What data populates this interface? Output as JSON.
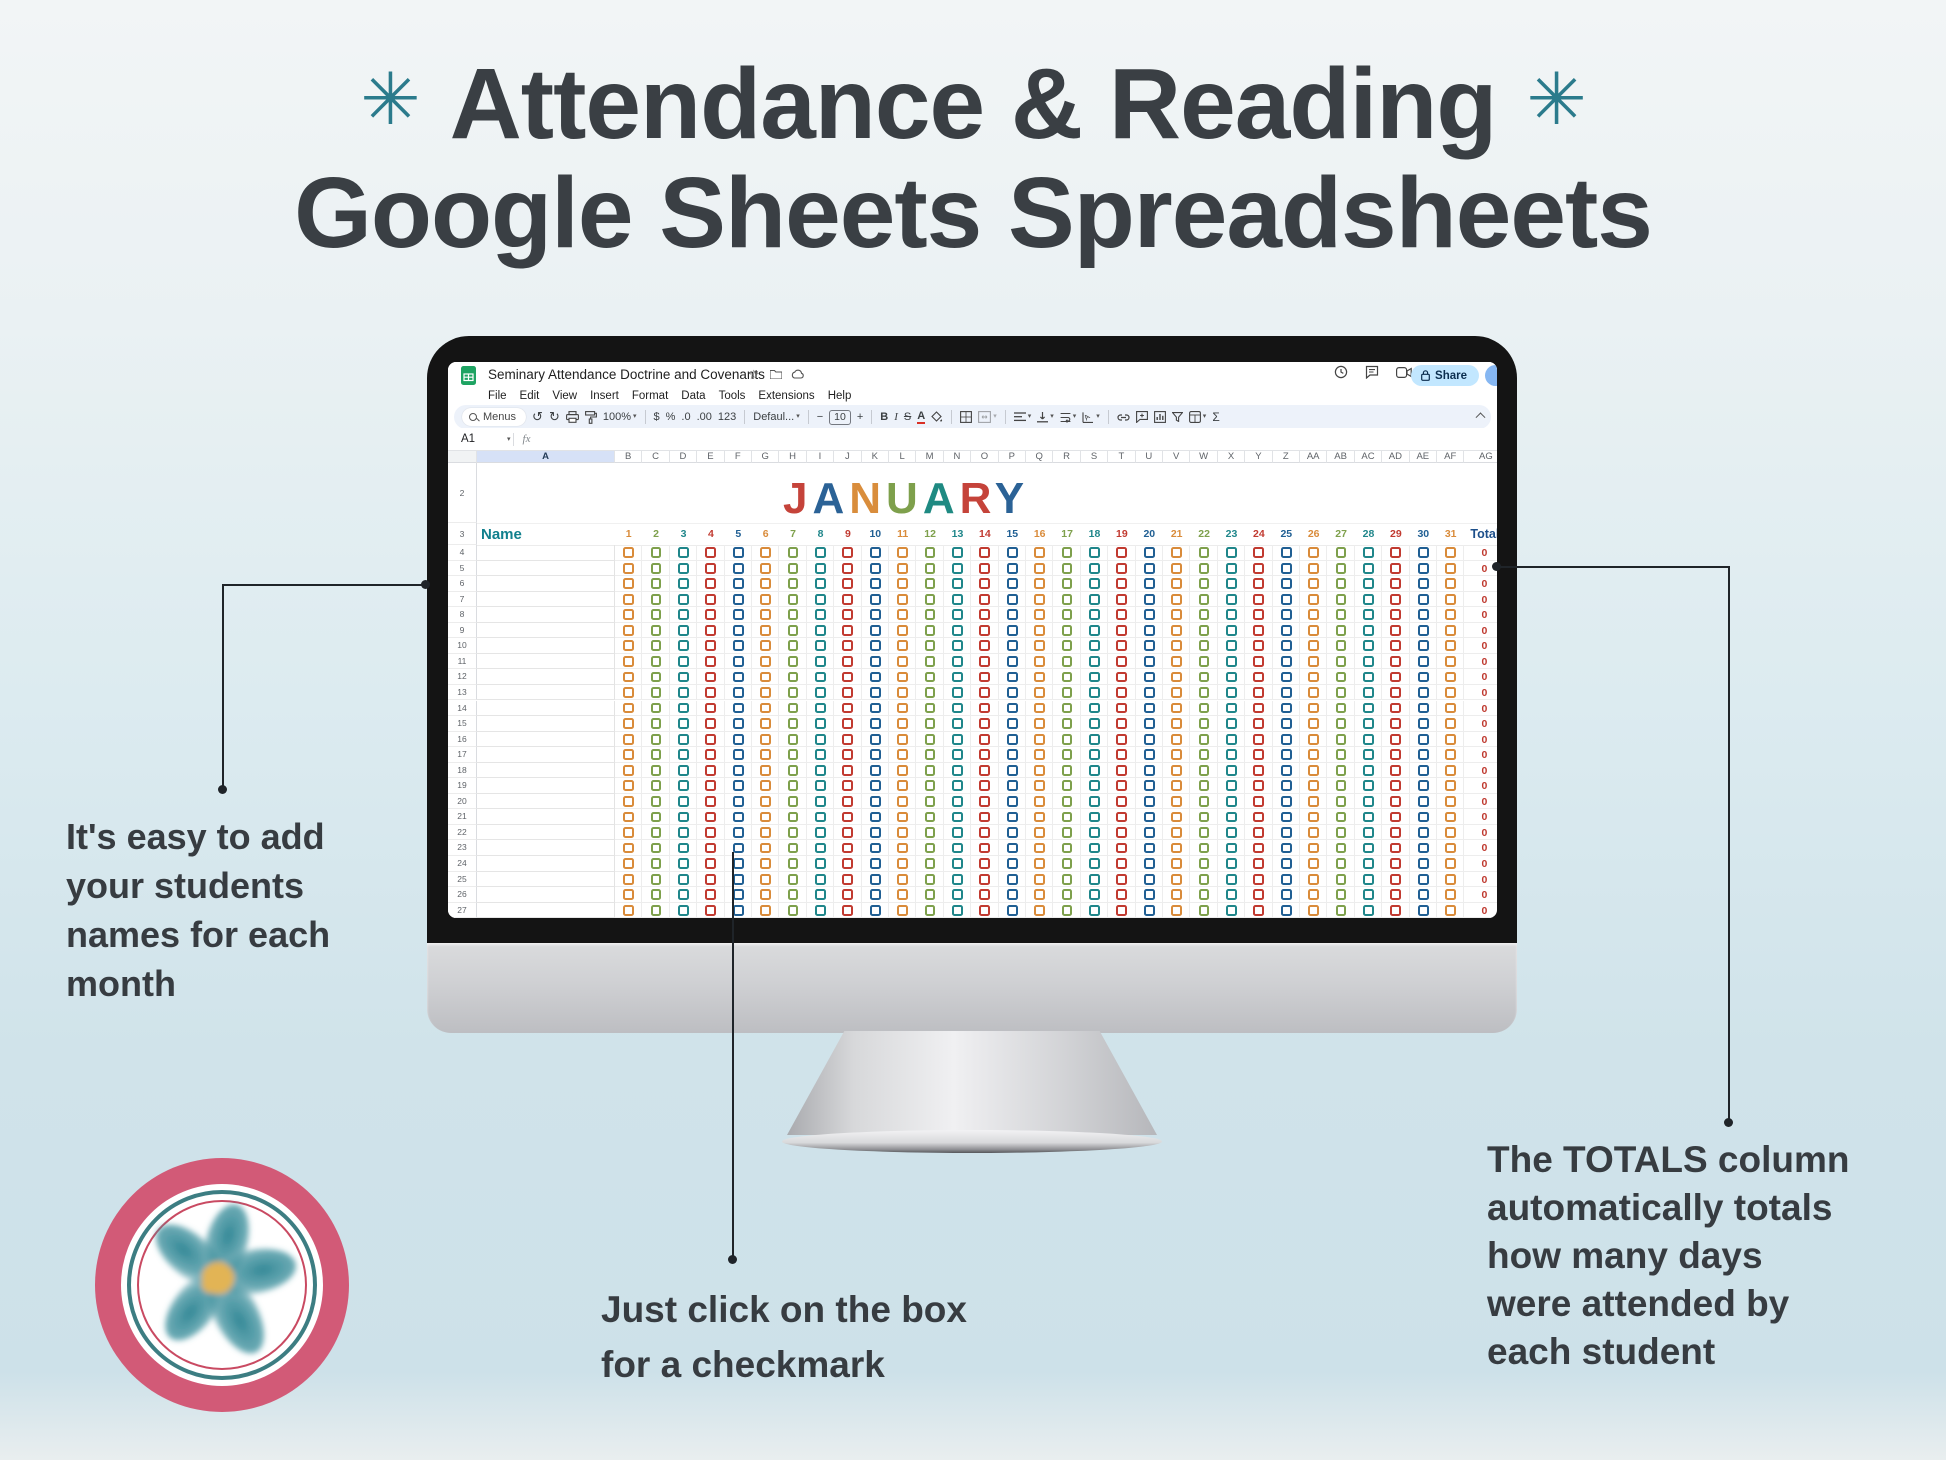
{
  "poster": {
    "asterisk": "✳",
    "title_line1": "Attendance & Reading",
    "title_line2": "Google Sheets Spreadsheets"
  },
  "annotations": {
    "left": {
      "lines": [
        "It's easy to add",
        "your students",
        "names for each",
        "month"
      ]
    },
    "bottom": {
      "lines": [
        "Just click on the box",
        "for a checkmark"
      ]
    },
    "right": {
      "lines": [
        "The TOTALS column",
        "automatically totals",
        "how many days",
        "were attended by",
        "each student"
      ]
    }
  },
  "icons": {
    "star": "☆",
    "undo": "↺",
    "redo": "↻",
    "caret": "▾"
  },
  "sheet": {
    "doc_title": "Seminary Attendance Doctrine and Covenants",
    "menu": [
      "File",
      "Edit",
      "View",
      "Insert",
      "Format",
      "Data",
      "Tools",
      "Extensions",
      "Help"
    ],
    "toolbar": {
      "menus_label": "Menus",
      "zoom_value": "100%",
      "currency_label": "$",
      "percent_label": "%",
      "decimal_decrease_label": ".0",
      "decimal_increase_label": ".00",
      "number_format_label": "123",
      "font_family_label": "Defaul...",
      "minus_label": "−",
      "font_size_value": "10",
      "plus_label": "+",
      "bold_label": "B",
      "italic_label": "I",
      "strikethrough_label": "S",
      "text_color_label": "A",
      "functions_label": "Σ"
    },
    "share_label": "Share",
    "name_box_value": "A1",
    "formula_fx": "fx",
    "columns": [
      "A",
      "B",
      "C",
      "D",
      "E",
      "F",
      "G",
      "H",
      "I",
      "J",
      "K",
      "L",
      "M",
      "N",
      "O",
      "P",
      "Q",
      "R",
      "S",
      "T",
      "U",
      "V",
      "W",
      "X",
      "Y",
      "Z",
      "AA",
      "AB",
      "AC",
      "AD",
      "AE",
      "AF",
      "AG"
    ],
    "gutter_row2": "2",
    "gutter_row3": "3",
    "month_title": [
      {
        "ch": "J",
        "color": "#c5433a"
      },
      {
        "ch": "A",
        "color": "#2b6296"
      },
      {
        "ch": "N",
        "color": "#d98d3c"
      },
      {
        "ch": "U",
        "color": "#7ea04c"
      },
      {
        "ch": "A",
        "color": "#1f8a82"
      },
      {
        "ch": "R",
        "color": "#c5433a"
      },
      {
        "ch": "Y",
        "color": "#2b6296"
      }
    ],
    "header_row": {
      "name_label": "Name",
      "days": [
        1,
        2,
        3,
        4,
        5,
        6,
        7,
        8,
        9,
        10,
        11,
        12,
        13,
        14,
        15,
        16,
        17,
        18,
        19,
        20,
        21,
        22,
        23,
        24,
        25,
        26,
        27,
        28,
        29,
        30,
        31
      ],
      "total_label": "Total"
    },
    "day_color_cycle": [
      "#d98b3a",
      "#7ea04c",
      "#1f868a",
      "#c13a30",
      "#205f93"
    ],
    "data_rows": [
      4,
      5,
      6,
      7,
      8,
      9,
      10,
      11,
      12,
      13,
      14,
      15,
      16,
      17,
      18,
      19,
      20,
      21,
      22,
      23,
      24,
      25,
      26,
      27
    ],
    "total_value": "0"
  }
}
